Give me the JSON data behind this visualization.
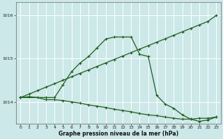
{
  "background_color": "#cce8e8",
  "grid_color": "#ffffff",
  "line_color": "#1e5c1e",
  "xlabel": "Graphe pression niveau de la mer (hPa)",
  "xlim": [
    -0.5,
    23.5
  ],
  "ylim": [
    1013.5,
    1016.3
  ],
  "yticks": [
    1014,
    1015,
    1016
  ],
  "xticks": [
    0,
    1,
    2,
    3,
    4,
    5,
    6,
    7,
    8,
    9,
    10,
    11,
    12,
    13,
    14,
    15,
    16,
    17,
    18,
    19,
    20,
    21,
    22,
    23
  ],
  "line_diag_x": [
    0,
    1,
    2,
    3,
    4,
    5,
    6,
    7,
    8,
    9,
    10,
    11,
    12,
    13,
    14,
    15,
    16,
    17,
    18,
    19,
    20,
    21,
    22,
    23
  ],
  "line_diag_y": [
    1014.1,
    1014.18,
    1014.26,
    1014.34,
    1014.42,
    1014.5,
    1014.58,
    1014.66,
    1014.74,
    1014.82,
    1014.9,
    1014.98,
    1015.06,
    1015.14,
    1015.22,
    1015.3,
    1015.38,
    1015.46,
    1015.54,
    1015.62,
    1015.7,
    1015.78,
    1015.86,
    1016.0
  ],
  "line_bell_x": [
    0,
    3,
    4,
    5,
    6,
    7,
    8,
    9,
    10,
    11,
    12,
    13,
    14,
    15,
    16,
    17,
    18,
    19,
    20,
    21,
    22,
    23
  ],
  "line_bell_y": [
    1014.1,
    1014.1,
    1014.1,
    1014.4,
    1014.7,
    1014.9,
    1015.05,
    1015.25,
    1015.45,
    1015.5,
    1015.5,
    1015.5,
    1015.1,
    1015.05,
    1014.15,
    1013.95,
    1013.85,
    1013.7,
    1013.6,
    1013.55,
    1013.58,
    1013.65
  ],
  "line_flat_x": [
    0,
    1,
    2,
    3,
    4,
    5,
    6,
    7,
    8,
    9,
    10,
    11,
    12,
    13,
    14,
    15,
    16,
    17,
    18,
    19,
    20,
    21,
    22,
    23
  ],
  "line_flat_y": [
    1014.1,
    1014.12,
    1014.1,
    1014.05,
    1014.05,
    1014.03,
    1014.0,
    1013.97,
    1013.93,
    1013.9,
    1013.87,
    1013.83,
    1013.8,
    1013.77,
    1013.73,
    1013.7,
    1013.68,
    1013.65,
    1013.62,
    1013.6,
    1013.6,
    1013.62,
    1013.62,
    1013.65
  ]
}
